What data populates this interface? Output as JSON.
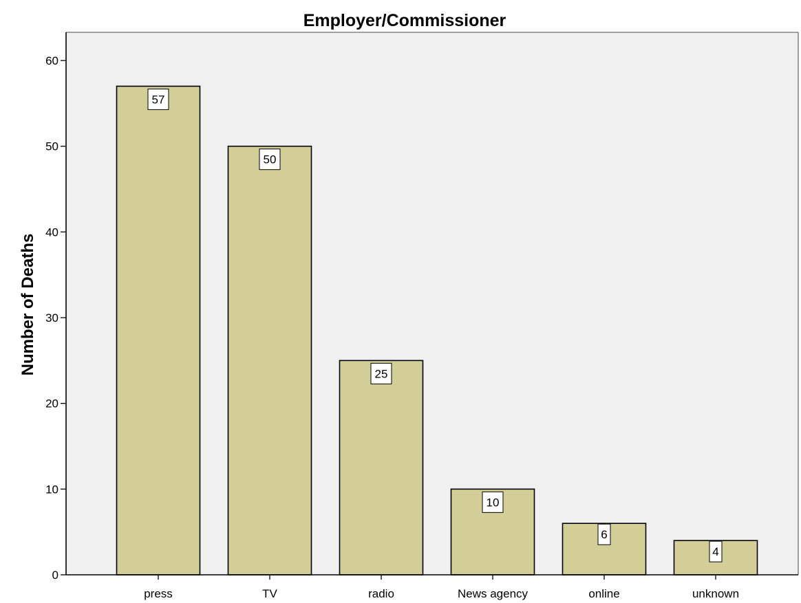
{
  "chart_data": {
    "type": "bar",
    "title": "Employer/Commissioner",
    "xlabel": "",
    "ylabel": "Number of Deaths",
    "categories": [
      "press",
      "TV",
      "radio",
      "News agency",
      "online",
      "unknown"
    ],
    "values": [
      57,
      50,
      25,
      10,
      6,
      4
    ],
    "data_labels": [
      "57",
      "50",
      "25",
      "10",
      "6",
      "4"
    ],
    "y_ticks": [
      0,
      10,
      20,
      30,
      40,
      50,
      60
    ],
    "y_tick_labels": [
      "0",
      "10",
      "20",
      "30",
      "40",
      "50",
      "60"
    ],
    "ylim": [
      0,
      60
    ],
    "grid": false,
    "legend": "none",
    "colors": {
      "bar_fill": "#d3ce97",
      "bar_stroke": "#000000",
      "plot_background": "#f0f0f0",
      "axis": "#000000",
      "label_box_fill": "#ffffff"
    }
  }
}
